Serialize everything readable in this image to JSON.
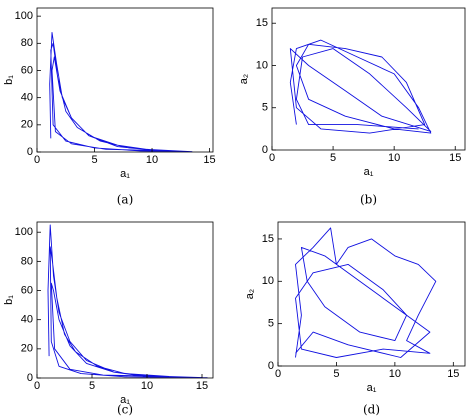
{
  "chart_data": [
    {
      "type": "line",
      "caption": "(a)",
      "xlabel": "a₁",
      "ylabel": "b₁",
      "color": "#1010e0",
      "xlim": [
        0,
        15.3
      ],
      "ylim": [
        0,
        106
      ],
      "xticks": [
        0,
        5,
        10,
        15
      ],
      "yticks": [
        0,
        20,
        40,
        60,
        80,
        100
      ],
      "x": [
        1.2,
        1.1,
        1.3,
        1.7,
        2.2,
        3,
        4.5,
        7,
        10,
        13,
        9,
        5,
        2.5,
        1.4,
        1.2,
        1.4,
        1.8,
        2.5,
        3.5,
        5.5,
        8,
        11,
        6,
        3,
        1.6,
        1.3,
        1.5,
        2,
        3,
        4.5,
        7,
        9.5,
        13.5
      ],
      "values": [
        10,
        50,
        88,
        65,
        40,
        25,
        12,
        4,
        1.5,
        0.3,
        0.8,
        3,
        8,
        20,
        75,
        80,
        55,
        30,
        18,
        8,
        3,
        1,
        2,
        6,
        15,
        60,
        70,
        45,
        25,
        12,
        5,
        2,
        0.2
      ]
    },
    {
      "type": "line",
      "caption": "(b)",
      "xlabel": "a₁",
      "ylabel": "a₂",
      "color": "#1010e0",
      "xlim": [
        0,
        15.8
      ],
      "ylim": [
        0,
        16.8
      ],
      "xticks": [
        0,
        5,
        10,
        15
      ],
      "yticks": [
        0,
        5,
        10,
        15
      ],
      "x": [
        2,
        1.5,
        2,
        4,
        7,
        10,
        12,
        13,
        10,
        6,
        3,
        2,
        3,
        6,
        9,
        11,
        12.5,
        8,
        4,
        2,
        1.5,
        3,
        6,
        9,
        13,
        11,
        8,
        5,
        2.5,
        2,
        3,
        7,
        12
      ],
      "values": [
        3,
        8,
        12,
        13,
        11,
        9,
        5,
        2,
        2.5,
        4,
        6,
        10,
        12.5,
        12,
        11,
        8,
        3,
        2,
        2.5,
        5,
        12,
        10,
        7,
        4,
        2.2,
        5,
        9,
        12,
        11,
        6,
        3,
        3,
        2.5
      ]
    },
    {
      "type": "line",
      "caption": "(c)",
      "xlabel": "a₁",
      "ylabel": "b₁",
      "color": "#1010e0",
      "xlim": [
        0,
        16
      ],
      "ylim": [
        0,
        107
      ],
      "xticks": [
        0,
        5,
        10,
        15
      ],
      "yticks": [
        0,
        20,
        40,
        60,
        80,
        100
      ],
      "x": [
        1.1,
        1,
        1.2,
        1.5,
        2,
        3,
        4.5,
        7,
        10,
        15,
        8,
        4,
        2,
        1.3,
        1.2,
        1.4,
        1.8,
        2.5,
        3.5,
        5.5,
        8,
        12,
        6,
        3,
        1.6,
        1.3,
        1.5,
        2,
        3,
        4.5,
        7,
        10,
        15.5
      ],
      "values": [
        15,
        60,
        105,
        70,
        45,
        25,
        12,
        4,
        1.5,
        0.3,
        0.8,
        3,
        8,
        25,
        90,
        80,
        55,
        30,
        18,
        8,
        3,
        1,
        2,
        6,
        20,
        65,
        60,
        40,
        22,
        10,
        4,
        1,
        0.2
      ]
    },
    {
      "type": "line",
      "caption": "(d)",
      "xlabel": "a₁",
      "ylabel": "a₂",
      "color": "#1010e0",
      "xlim": [
        0,
        16
      ],
      "ylim": [
        0,
        17
      ],
      "xticks": [
        0,
        5,
        10,
        15
      ],
      "yticks": [
        0,
        5,
        10,
        15
      ],
      "x": [
        1.5,
        2,
        1.5,
        3,
        4.5,
        5,
        6,
        8,
        10,
        12,
        13.5,
        12,
        11,
        13,
        9,
        5,
        2,
        1.5,
        3,
        6,
        9,
        11,
        10,
        7,
        4,
        2.5,
        2,
        4,
        7,
        10,
        13,
        10.5,
        6,
        3,
        1.5
      ],
      "values": [
        1,
        6,
        12,
        14,
        16.3,
        12,
        14,
        15,
        13,
        12,
        10,
        6,
        3,
        1.5,
        2,
        1,
        2,
        8,
        11,
        12,
        9,
        6,
        3,
        4,
        7,
        10,
        14,
        13,
        10,
        7,
        4,
        1,
        2.5,
        4,
        1.5
      ]
    }
  ]
}
